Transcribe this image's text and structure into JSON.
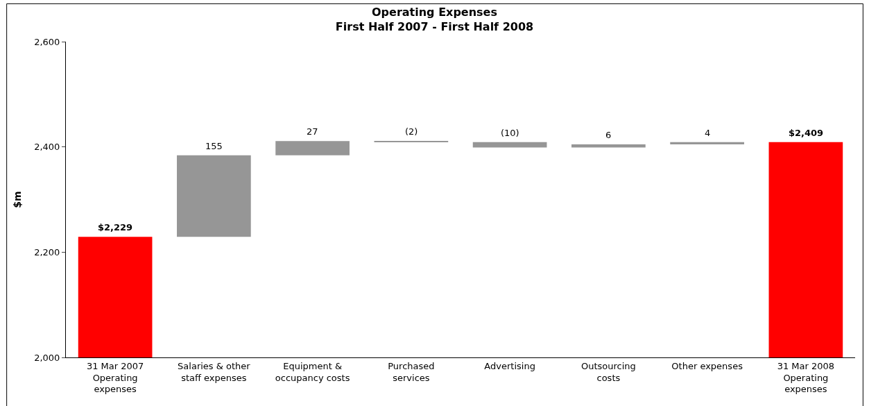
{
  "chart_data": {
    "type": "bar",
    "title": "Operating Expenses",
    "subtitle": "First Half 2007 - First Half 2008",
    "ylabel": "$m",
    "categories": [
      "31 Mar 2007 Operating expenses",
      "Salaries & other staff expenses",
      "Equipment & occupancy costs",
      "Purchased services",
      "Advertising",
      "Outsourcing costs",
      "Other expenses",
      "31 Mar 2008 Operating expenses"
    ],
    "values": [
      2229,
      155,
      27,
      -2,
      -10,
      6,
      4,
      2409
    ],
    "base": [
      null,
      2229,
      2384,
      2411,
      2409,
      2399,
      2405,
      null
    ],
    "colors": [
      "#ff0000",
      "#969696",
      "#969696",
      "#969696",
      "#969696",
      "#969696",
      "#969696",
      "#ff0000"
    ],
    "value_labels": [
      "$2,229",
      "155",
      "27",
      "(2)",
      "(10)",
      "6",
      "4",
      "$2,409"
    ],
    "ylim": [
      2000,
      2600
    ],
    "yticks": [
      {
        "value": 2000,
        "label": "2,000"
      },
      {
        "value": 2200,
        "label": "2,200"
      },
      {
        "value": 2400,
        "label": "2,400"
      },
      {
        "value": 2600,
        "label": "2,600"
      }
    ],
    "legend": false
  }
}
